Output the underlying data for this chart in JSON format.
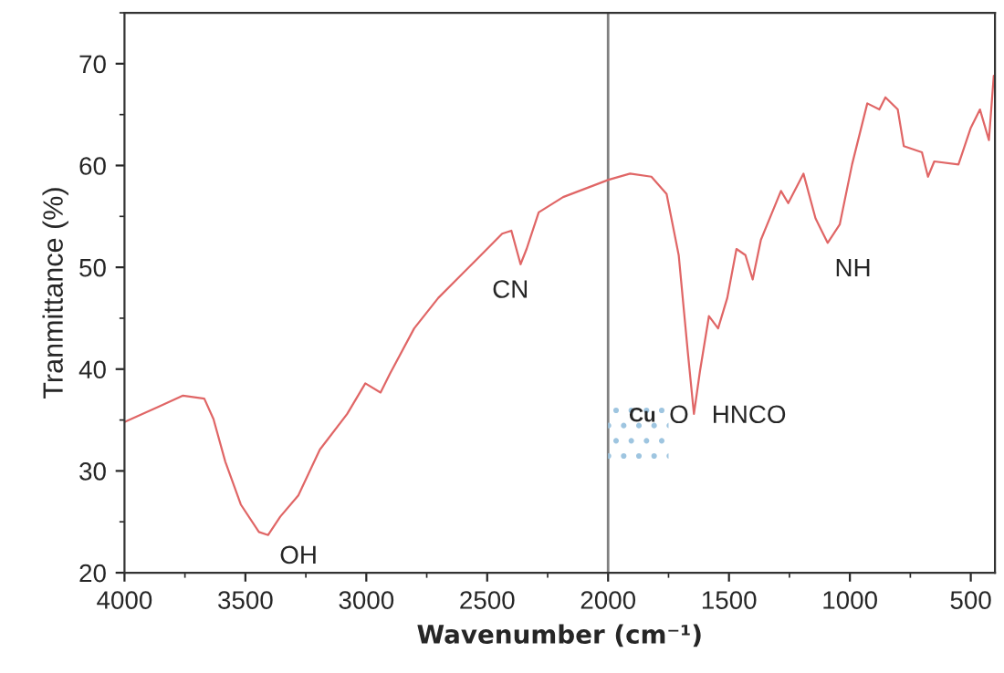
{
  "chart_data": {
    "type": "line",
    "xlabel": "Wavenumber (cm⁻¹)",
    "ylabel": "Tranmittance (%)",
    "xlim": [
      4000,
      400
    ],
    "ylim": [
      20,
      75
    ],
    "xticks": [
      4000,
      3500,
      3000,
      2500,
      2000,
      1500,
      1000,
      500
    ],
    "yticks": [
      20,
      30,
      40,
      50,
      60,
      70
    ],
    "grid": false,
    "marker": "none",
    "line_style": "solid",
    "series": [
      {
        "color": "#e06666",
        "x": [
          4000,
          3859,
          3758,
          3670,
          3632,
          3583,
          3519,
          3444,
          3406,
          3356,
          3281,
          3192,
          3079,
          3004,
          2941,
          2903,
          2802,
          2702,
          2551,
          2438,
          2400,
          2362,
          2337,
          2287,
          2186,
          1998,
          1909,
          1821,
          1758,
          1708,
          1670,
          1645,
          1620,
          1583,
          1545,
          1507,
          1469,
          1432,
          1402,
          1368,
          1285,
          1255,
          1192,
          1142,
          1092,
          1042,
          991,
          928,
          878,
          853,
          802,
          777,
          702,
          677,
          651,
          551,
          500,
          462,
          425,
          405
        ],
        "values": [
          34.8,
          36.3,
          37.4,
          37.1,
          35.1,
          30.9,
          26.7,
          24.0,
          23.7,
          25.5,
          27.6,
          32.1,
          35.6,
          38.6,
          37.7,
          39.5,
          44.0,
          47.0,
          50.6,
          53.3,
          53.6,
          50.3,
          51.8,
          55.4,
          56.9,
          58.6,
          59.2,
          58.9,
          57.2,
          51.2,
          41.6,
          35.6,
          39.8,
          45.2,
          44.0,
          47.0,
          51.8,
          51.2,
          48.8,
          52.7,
          57.5,
          56.3,
          59.2,
          54.8,
          52.4,
          54.2,
          60.1,
          66.1,
          65.5,
          66.7,
          65.5,
          61.9,
          61.3,
          58.9,
          60.4,
          60.1,
          63.7,
          65.5,
          62.5,
          68.8
        ]
      }
    ],
    "ref_lines": [
      {
        "axis": "x",
        "value": 2000,
        "color": "#808080"
      }
    ],
    "annotations": [
      {
        "text": "OH",
        "x": 3406,
        "y": 23.7
      },
      {
        "text": "CN",
        "x": 2362,
        "y": 50.3
      },
      {
        "text": "NH",
        "x": 1092,
        "y": 52.4
      },
      {
        "text": "HNCO",
        "x": 1645,
        "y": 35.6
      },
      "O",
      "Cu"
    ]
  }
}
